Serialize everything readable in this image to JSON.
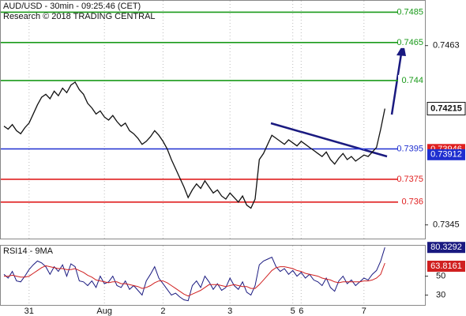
{
  "chart_data": [
    {
      "type": "line",
      "title": "AUD/USD - 30min - 09:25:46 (CET)",
      "subtitle": "Research © 2018 TRADING CENTRAL",
      "categories": [
        null,
        null,
        null,
        null,
        null,
        null,
        "31",
        null,
        null,
        null,
        null,
        null,
        null,
        null,
        null,
        null,
        null,
        null,
        null,
        null,
        null,
        null,
        null,
        null,
        "Aug",
        null,
        null,
        null,
        null,
        null,
        null,
        null,
        null,
        null,
        null,
        null,
        null,
        null,
        "2",
        null,
        null,
        null,
        null,
        null,
        null,
        null,
        null,
        null,
        null,
        null,
        null,
        null,
        null,
        null,
        "3",
        null,
        null,
        null,
        null,
        null,
        null,
        null,
        null,
        null,
        null,
        null,
        null,
        null,
        null,
        "5",
        null,
        "6",
        null,
        null,
        null,
        null,
        null,
        null,
        null,
        null,
        null,
        null,
        null,
        null,
        null,
        null,
        "7",
        null,
        null,
        null,
        null,
        null
      ],
      "values": [
        0.741,
        0.7408,
        0.7411,
        0.7407,
        0.7405,
        0.7409,
        0.7412,
        0.7418,
        0.7424,
        0.7429,
        0.7431,
        0.7428,
        0.7433,
        0.743,
        0.7435,
        0.7432,
        0.7437,
        0.7439,
        0.7434,
        0.7431,
        0.7425,
        0.7422,
        0.7418,
        0.742,
        0.7416,
        0.7414,
        0.7417,
        0.7413,
        0.741,
        0.7412,
        0.7407,
        0.7405,
        0.7402,
        0.7398,
        0.74,
        0.7403,
        0.7407,
        0.7404,
        0.74,
        0.7395,
        0.7388,
        0.7382,
        0.7376,
        0.737,
        0.7363,
        0.7368,
        0.7372,
        0.7369,
        0.7374,
        0.737,
        0.7366,
        0.7368,
        0.7364,
        0.7362,
        0.7366,
        0.7363,
        0.736,
        0.7364,
        0.7358,
        0.7356,
        0.7362,
        0.7388,
        0.7392,
        0.7398,
        0.7404,
        0.7402,
        0.74,
        0.7398,
        0.7401,
        0.7399,
        0.7397,
        0.74,
        0.7398,
        0.7396,
        0.7394,
        0.7392,
        0.739,
        0.7393,
        0.7388,
        0.7385,
        0.7389,
        0.7392,
        0.7388,
        0.739,
        0.7387,
        0.7389,
        0.7391,
        0.739,
        0.7393,
        0.7396,
        0.7408,
        0.74215
      ],
      "color": "#111111",
      "ylim": [
        0.7336,
        0.7493
      ],
      "yticks": [
        0.7463,
        0.7345
      ],
      "levels": [
        {
          "value": 0.7485,
          "color": "#1a9a1a"
        },
        {
          "value": 0.7465,
          "color": "#1a9a1a"
        },
        {
          "value": 0.744,
          "color": "#1a9a1a"
        },
        {
          "value": 0.7395,
          "color": "#1f2fd0"
        },
        {
          "value": 0.7375,
          "color": "#e02020"
        },
        {
          "value": 0.736,
          "color": "#e02020"
        }
      ],
      "markers": [
        {
          "value": 0.73946,
          "color": "#e02020"
        },
        {
          "value": 0.73912,
          "color": "#1f2fd0"
        }
      ]
    },
    {
      "type": "line",
      "title": "RSI14 - 9MA",
      "ylim": [
        19.6,
        83
      ],
      "yticks": [
        50,
        30
      ],
      "series": [
        {
          "color": "#1a1a80",
          "values": [
            52,
            48,
            55,
            45,
            44,
            50,
            57,
            62,
            66,
            64,
            60,
            52,
            60,
            55,
            62,
            50,
            63,
            60,
            45,
            44,
            40,
            45,
            38,
            50,
            42,
            44,
            50,
            40,
            38,
            45,
            36,
            40,
            35,
            30,
            45,
            52,
            60,
            48,
            42,
            36,
            30,
            32,
            28,
            25,
            24,
            40,
            45,
            38,
            50,
            44,
            36,
            42,
            35,
            38,
            48,
            40,
            36,
            44,
            33,
            30,
            40,
            62,
            66,
            68,
            70,
            60,
            55,
            58,
            52,
            56,
            50,
            54,
            48,
            52,
            46,
            44,
            40,
            48,
            38,
            34,
            45,
            50,
            42,
            46,
            40,
            44,
            48,
            46,
            52,
            56,
            66,
            80.3292
          ]
        },
        {
          "color": "#d02020",
          "values": [
            50,
            50,
            51,
            50,
            49,
            49,
            50,
            53,
            56,
            59,
            61,
            60,
            59,
            58,
            58,
            57,
            57,
            58,
            56,
            54,
            51,
            49,
            46,
            45,
            44,
            43,
            44,
            44,
            42,
            42,
            41,
            40,
            39,
            37,
            38,
            40,
            43,
            45,
            45,
            43,
            40,
            37,
            34,
            31,
            29,
            31,
            33,
            35,
            38,
            41,
            41,
            41,
            40,
            39,
            40,
            41,
            40,
            39,
            39,
            37,
            37,
            41,
            46,
            51,
            56,
            59,
            60,
            60,
            59,
            58,
            56,
            55,
            53,
            52,
            51,
            50,
            48,
            47,
            46,
            44,
            43,
            44,
            44,
            44,
            44,
            44,
            45,
            45,
            46,
            48,
            52,
            63.8161
          ]
        }
      ]
    }
  ]
}
